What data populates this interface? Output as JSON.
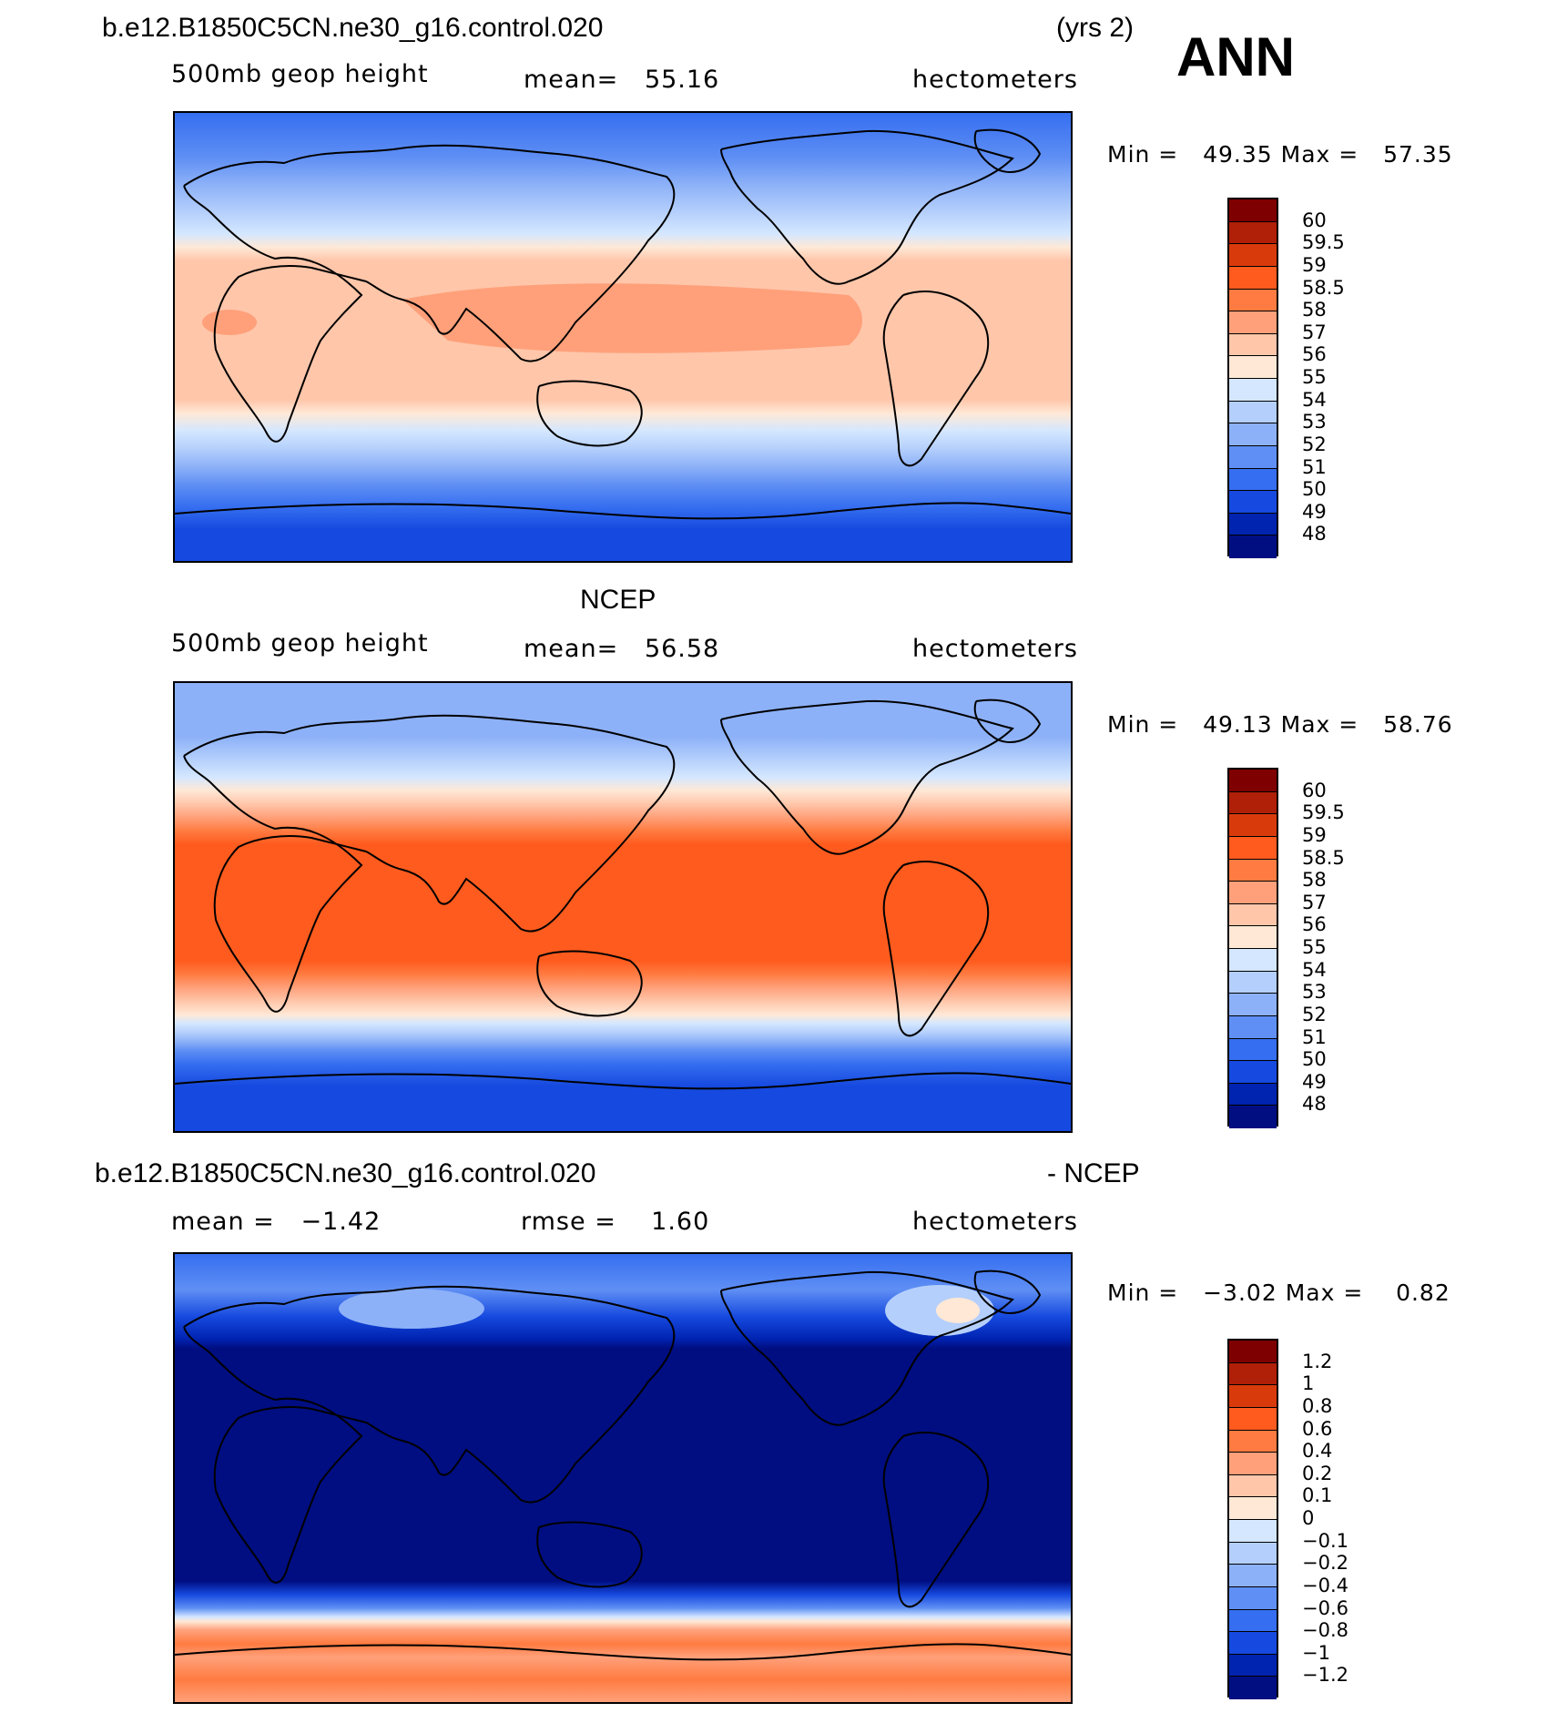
{
  "header": {
    "case_title": "b.e12.B1850C5CN.ne30_g16.control.020",
    "years": "(yrs 2)",
    "season": "ANN"
  },
  "panels": [
    {
      "title": "",
      "variable": "500mb geop height",
      "stat_left": "",
      "mean": "mean=   55.16",
      "units": "hectometers",
      "min_label": "Min =",
      "min_value": "49.35",
      "max_label": "Max =",
      "max_value": "57.35",
      "levels": [
        "60",
        "59.5",
        "59",
        "58.5",
        "58",
        "57",
        "56",
        "55",
        "54",
        "53",
        "52",
        "51",
        "50",
        "49",
        "48"
      ]
    },
    {
      "title": "NCEP",
      "variable": "500mb geop height",
      "mean": "mean=   56.58",
      "units": "hectometers",
      "min_label": "Min =",
      "min_value": "49.13",
      "max_label": "Max =",
      "max_value": "58.76",
      "levels": [
        "60",
        "59.5",
        "59",
        "58.5",
        "58",
        "57",
        "56",
        "55",
        "54",
        "53",
        "52",
        "51",
        "50",
        "49",
        "48"
      ]
    },
    {
      "title_left": "b.e12.B1850C5CN.ne30_g16.control.020",
      "title_right": "- NCEP",
      "variable": "mean =   −1.42",
      "mean": "rmse =    1.60",
      "units": "hectometers",
      "min_label": "Min =",
      "min_value": "−3.02",
      "max_label": "Max =",
      "max_value": "0.82",
      "levels": [
        "1.2",
        "1",
        "0.8",
        "0.6",
        "0.4",
        "0.2",
        "0.1",
        "0",
        "−0.1",
        "−0.2",
        "−0.4",
        "−0.6",
        "−0.8",
        "−1",
        "−1.2"
      ]
    }
  ],
  "colorbar_colors": [
    "#7f0000",
    "#b01f07",
    "#d93a0c",
    "#ff5b1e",
    "#ff7b41",
    "#ffa07a",
    "#ffc6aa",
    "#ffe8d6",
    "#d4e7ff",
    "#b4cffc",
    "#8db1f8",
    "#5f8ff4",
    "#356ef0",
    "#1649df",
    "#0023b0",
    "#000e82"
  ]
}
